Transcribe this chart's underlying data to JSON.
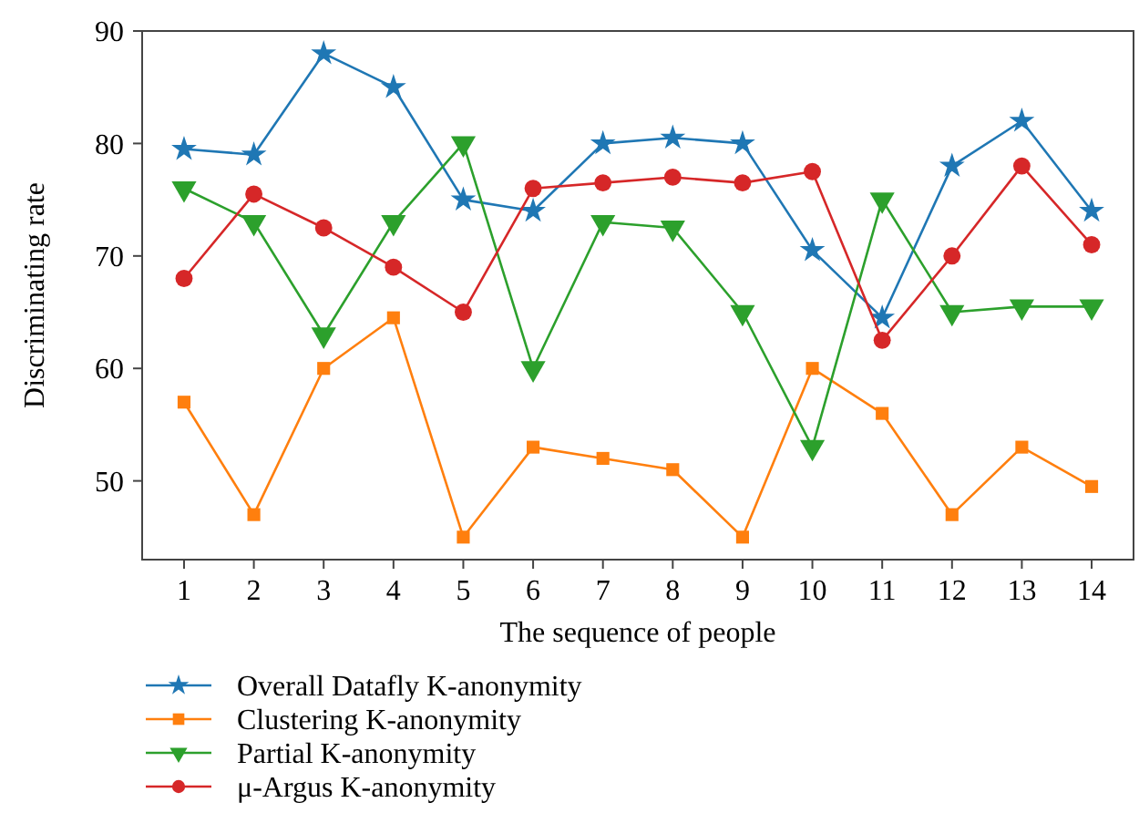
{
  "chart_data": {
    "type": "line",
    "xlabel": "The sequence of people",
    "ylabel": "Discriminating rate",
    "x": [
      1,
      2,
      3,
      4,
      5,
      6,
      7,
      8,
      9,
      10,
      11,
      12,
      13,
      14
    ],
    "xlim": [
      0.4,
      14.6
    ],
    "xticks": [
      1,
      2,
      3,
      4,
      5,
      6,
      7,
      8,
      9,
      10,
      11,
      12,
      13,
      14
    ],
    "ylim": [
      43,
      90
    ],
    "yticks": [
      50,
      60,
      70,
      80,
      90
    ],
    "grid": false,
    "legend": "bottom",
    "series": [
      {
        "name": "Overall Datafly K-anonymity",
        "color": "#1f77b4",
        "marker": "star",
        "values": [
          79.5,
          79,
          88,
          85,
          75,
          74,
          80,
          80.5,
          80,
          70.5,
          64.5,
          78,
          82,
          74
        ]
      },
      {
        "name": "Clustering K-anonymity",
        "color": "#ff7f0e",
        "marker": "square",
        "values": [
          57,
          47,
          60,
          64.5,
          45,
          53,
          52,
          51,
          45,
          60,
          56,
          47,
          53,
          49.5
        ]
      },
      {
        "name": "Partial K-anonymity",
        "color": "#2ca02c",
        "marker": "triangle",
        "values": [
          76,
          73,
          63,
          73,
          80,
          60,
          73,
          72.5,
          65,
          53,
          75,
          65,
          65.5,
          65.5
        ]
      },
      {
        "name": "μ-Argus K-anonymity",
        "color": "#d62728",
        "marker": "circle",
        "values": [
          68,
          75.5,
          72.5,
          69,
          65,
          76,
          76.5,
          77,
          76.5,
          77.5,
          62.5,
          70,
          78,
          71
        ]
      }
    ]
  }
}
